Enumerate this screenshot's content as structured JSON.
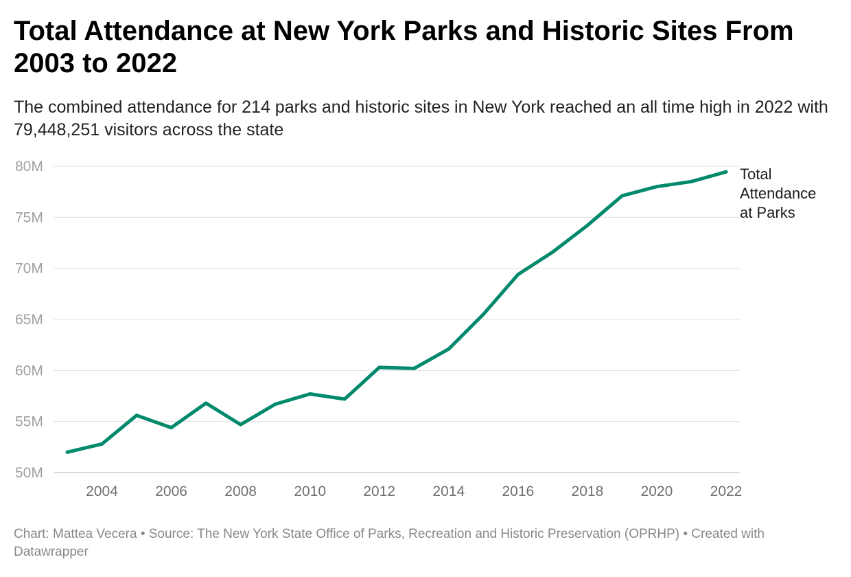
{
  "header": {
    "title": "Total Attendance at New York Parks and Historic Sites From 2003 to 2022",
    "subtitle": "The combined attendance for 214 parks and historic sites in New York reached an all time high in 2022 with 79,448,251 visitors across the state"
  },
  "footer": {
    "text": "Chart: Mattea Vecera • Source: The New York State Office of Parks, Recreation and Historic Preservation (OPRHP) • Created with Datawrapper"
  },
  "chart_data": {
    "type": "line",
    "x": [
      2003,
      2004,
      2005,
      2006,
      2007,
      2008,
      2009,
      2010,
      2011,
      2012,
      2013,
      2014,
      2015,
      2016,
      2017,
      2018,
      2019,
      2020,
      2021,
      2022
    ],
    "series": [
      {
        "name": "Total Attendance at Parks",
        "name_lines": [
          "Total",
          "Attendance",
          "at Parks"
        ],
        "color": "#00896b",
        "values": [
          52.0,
          52.8,
          55.6,
          54.4,
          56.8,
          54.7,
          56.7,
          57.7,
          57.2,
          60.3,
          60.2,
          62.1,
          65.5,
          69.4,
          71.6,
          74.2,
          77.1,
          78.0,
          78.5,
          79.45
        ]
      }
    ],
    "xlim": [
      2003,
      2022
    ],
    "ylim": [
      50,
      80
    ],
    "x_ticks": [
      2004,
      2006,
      2008,
      2010,
      2012,
      2014,
      2016,
      2018,
      2020,
      2022
    ],
    "x_tick_labels": [
      "2004",
      "2006",
      "2008",
      "2010",
      "2012",
      "2014",
      "2016",
      "2018",
      "2020",
      "2022"
    ],
    "y_ticks": [
      50,
      55,
      60,
      65,
      70,
      75,
      80
    ],
    "y_tick_labels": [
      "50M",
      "55M",
      "60M",
      "65M",
      "70M",
      "75M",
      "80M"
    ],
    "grid": true,
    "gridline_color": "#e0e0e0",
    "axis_line_color": "#cfcfcf",
    "legend": "none",
    "series_label_placement": "right-end-of-line"
  }
}
